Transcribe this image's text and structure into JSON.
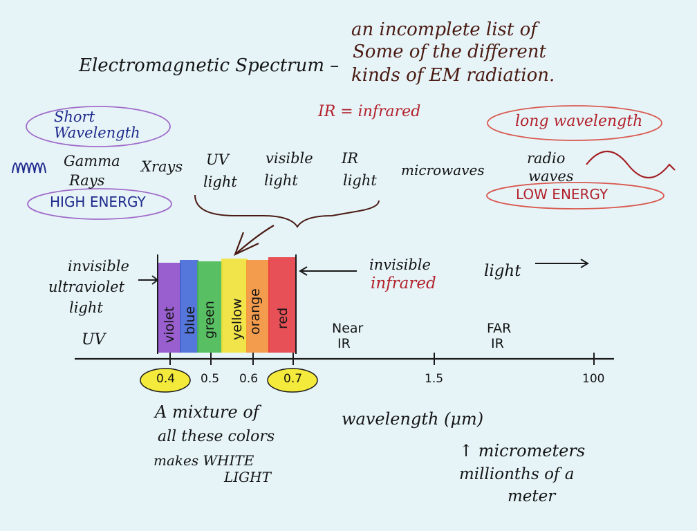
{
  "title": "Electromagnetic Spectrum –",
  "subtitle": [
    "an incomplete list of",
    "Some of the different",
    "kinds of EM radiation."
  ],
  "ir_note": "IR = infrared",
  "short_wavelength": [
    "Short",
    "Wavelength"
  ],
  "high_energy": "HIGH ENERGY",
  "long_wavelength": "long wavelength",
  "low_energy": "LOW ENERGY",
  "radiation_types": {
    "gamma": [
      "Gamma",
      "Rays"
    ],
    "xrays": "Xrays",
    "uv": [
      "UV",
      "light"
    ],
    "visible": [
      "visible",
      "light"
    ],
    "ir": [
      "IR",
      "light"
    ],
    "microwaves": "microwaves",
    "radio": [
      "radio",
      "waves"
    ]
  },
  "invisible_uv": [
    "invisible",
    "ultraviolet",
    "light"
  ],
  "invisible_ir": [
    "invisible",
    "infrared",
    "light"
  ],
  "colors": [
    {
      "name": "violet",
      "hex": "#8b44c7"
    },
    {
      "name": "blue",
      "hex": "#3b5fd6"
    },
    {
      "name": "green",
      "hex": "#3fb549"
    },
    {
      "name": "yellow",
      "hex": "#f2e236"
    },
    {
      "name": "orange",
      "hex": "#f5923a"
    },
    {
      "name": "red",
      "hex": "#e8333b"
    }
  ],
  "regions": {
    "uv": "UV",
    "near_ir": [
      "Near",
      "IR"
    ],
    "far_ir": [
      "FAR",
      "IR"
    ]
  },
  "ticks": [
    "0.4",
    "0.5",
    "0.6",
    "0.7",
    "1.5",
    "100"
  ],
  "mixture_note": [
    "A mixture of",
    "all these colors",
    "makes WHITE",
    "LIGHT"
  ],
  "axis_label": "wavelength (μm)",
  "micrometers_note": [
    "↑ micrometers",
    "millionths of a",
    "meter"
  ]
}
